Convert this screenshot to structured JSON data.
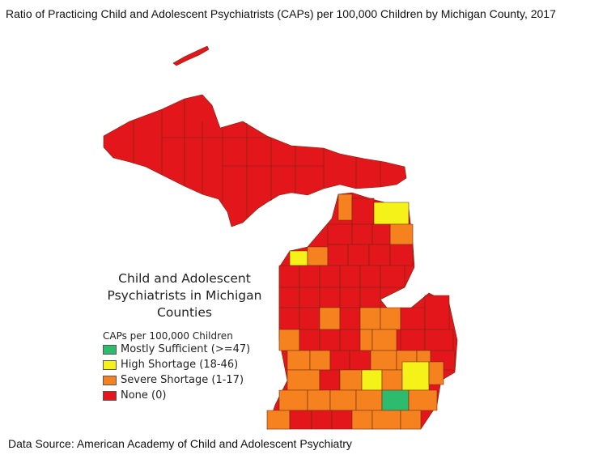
{
  "title": "Ratio of Practicing Child and Adolescent Psychiatrists (CAPs) per 100,000 Children by Michigan County, 2017",
  "legend": {
    "title_lines": [
      "Child and Adolescent",
      "Psychiatrists in Michigan",
      "Counties"
    ],
    "subtitle": "CAPs per 100,000 Children",
    "items": [
      {
        "label": "Mostly Sufficient (>=47)",
        "color": "#2dbb6e"
      },
      {
        "label": "High Shortage (18-46)",
        "color": "#f5f219"
      },
      {
        "label": "Severe Shortage (1-17)",
        "color": "#f5821f"
      },
      {
        "label": "None (0)",
        "color": "#e3161b"
      }
    ]
  },
  "source": "Data Source: American Academy of Child and Adolescent Psychiatry"
}
